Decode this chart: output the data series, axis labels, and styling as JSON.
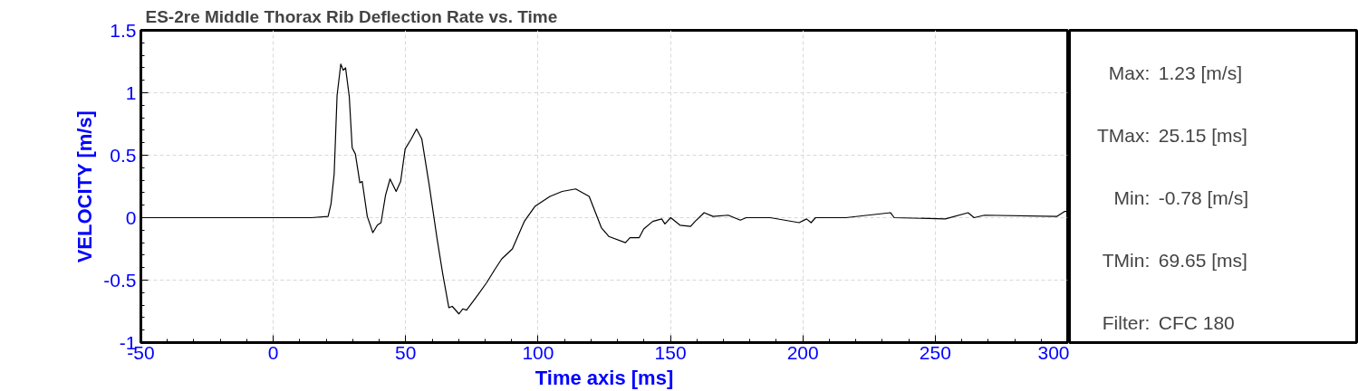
{
  "chart_data": {
    "type": "line",
    "title": "ES-2re Middle Thorax Rib Deflection Rate vs. Time",
    "xlabel": "Time axis [ms]",
    "ylabel": "VELOCITY [m/s]",
    "xlim": [
      -50,
      300
    ],
    "ylim": [
      -1,
      1.5
    ],
    "xticks": [
      -50,
      0,
      50,
      100,
      150,
      200,
      250,
      300
    ],
    "yticks": [
      -1,
      -0.5,
      0,
      0.5,
      1,
      1.5
    ],
    "grid": true,
    "series": [
      {
        "color": "#000000",
        "x": [
          -50,
          14.3,
          20.7,
          21.8,
          23,
          24.1,
          25.5,
          26.4,
          27.3,
          28.7,
          29.8,
          31,
          32.7,
          33.6,
          35.5,
          37.6,
          39.3,
          40.7,
          42.4,
          44.1,
          46.4,
          48.1,
          49.8,
          52.1,
          54.1,
          56.1,
          58.9,
          61.8,
          64,
          66.3,
          67.6,
          70.1,
          71.6,
          73,
          77.2,
          80.6,
          83.5,
          86.3,
          90.3,
          94.8,
          98.8,
          104.5,
          109.1,
          114.2,
          119.3,
          123.9,
          126.7,
          133,
          134.7,
          138.2,
          139.9,
          143.3,
          146.7,
          147.9,
          150.1,
          153.6,
          157.6,
          159.3,
          162.7,
          166.1,
          171.8,
          176.4,
          178.6,
          187.7,
          198.6,
          201.4,
          203.1,
          204.8,
          216.2,
          233.1,
          234.5,
          253.8,
          262.4,
          264.7,
          268.6,
          296,
          298.9,
          300
        ],
        "values": [
          0,
          0,
          0.01,
          0.11,
          0.35,
          0.98,
          1.23,
          1.18,
          1.2,
          0.97,
          0.56,
          0.51,
          0.28,
          0.29,
          0.01,
          -0.12,
          -0.06,
          -0.04,
          0.18,
          0.31,
          0.21,
          0.29,
          0.55,
          0.63,
          0.71,
          0.63,
          0.26,
          -0.16,
          -0.45,
          -0.72,
          -0.71,
          -0.77,
          -0.73,
          -0.74,
          -0.62,
          -0.52,
          -0.42,
          -0.33,
          -0.25,
          -0.03,
          0.09,
          0.17,
          0.21,
          0.23,
          0.17,
          -0.08,
          -0.15,
          -0.2,
          -0.16,
          -0.16,
          -0.09,
          -0.03,
          -0.01,
          -0.05,
          0,
          -0.06,
          -0.07,
          -0.03,
          0.04,
          0.01,
          0.02,
          -0.02,
          0,
          0,
          -0.04,
          -0.01,
          -0.04,
          0,
          0,
          0.04,
          0,
          -0.01,
          0.04,
          0,
          0.02,
          0.01,
          0.05,
          0.05
        ]
      }
    ],
    "annotations": [
      "Max:",
      "1.23 [m/s]",
      "TMax:",
      "25.15 [ms]",
      "Min:",
      "-0.78 [m/s]",
      "TMin:",
      "69.65 [ms]",
      "Filter:",
      "CFC 180"
    ]
  }
}
